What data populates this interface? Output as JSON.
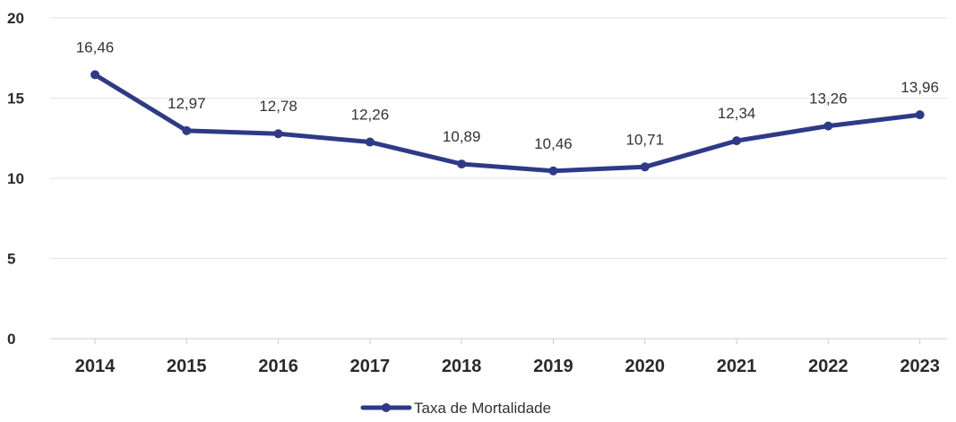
{
  "chart_data": {
    "type": "line",
    "title": "",
    "xlabel": "",
    "ylabel": "",
    "x": [
      "2014",
      "2015",
      "2016",
      "2017",
      "2018",
      "2019",
      "2020",
      "2021",
      "2022",
      "2023"
    ],
    "series": [
      {
        "name": "Taxa de Mortalidade",
        "values": [
          16.46,
          12.97,
          12.78,
          12.26,
          10.89,
          10.46,
          10.71,
          12.34,
          13.26,
          13.96
        ],
        "labels": [
          "16,46",
          "12,97",
          "12,78",
          "12,26",
          "10,89",
          "10,46",
          "10,71",
          "12,34",
          "13,26",
          "13,96"
        ]
      }
    ],
    "ylim": [
      0,
      20
    ],
    "yticks": [
      0,
      5,
      10,
      15,
      20
    ],
    "ytick_labels": [
      "0",
      "5",
      "10",
      "15",
      "20"
    ],
    "grid": "horizontal",
    "legend": "bottom-center",
    "colors": {
      "line": "#2e3a87",
      "grid": "#e3e3e3",
      "axis": "#cccccc"
    }
  }
}
